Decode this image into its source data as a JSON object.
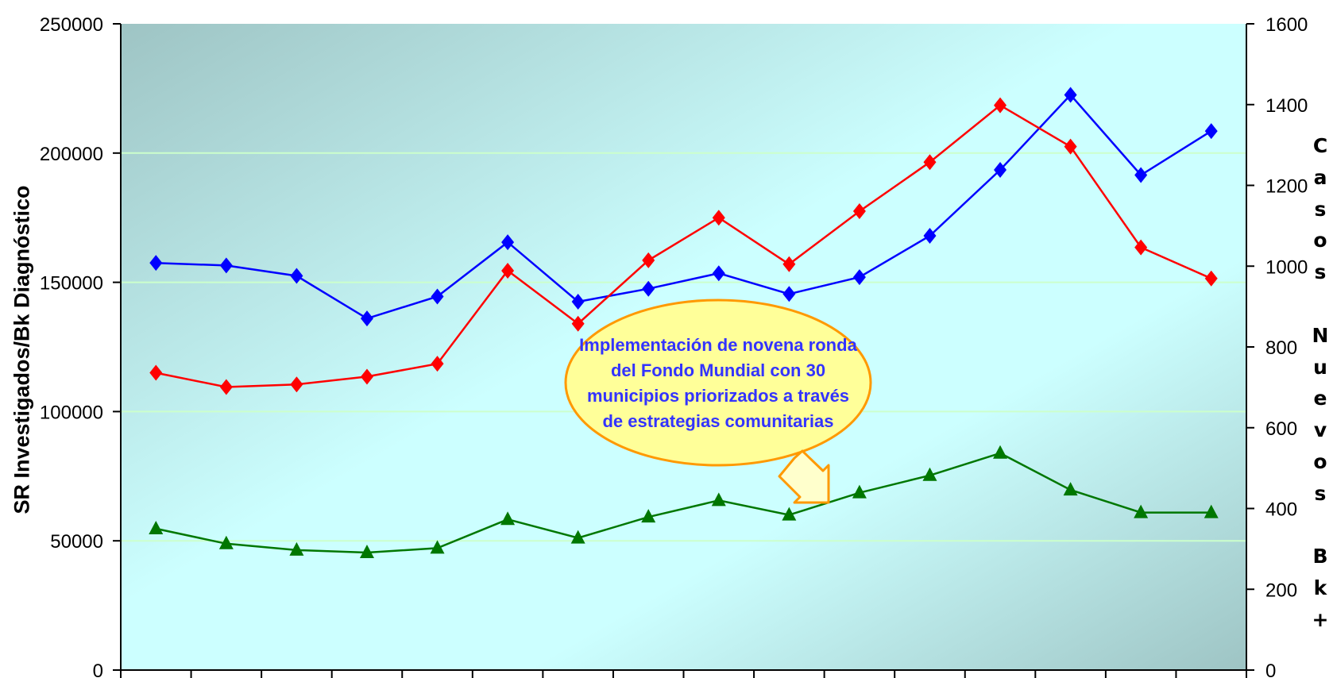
{
  "chart_data": {
    "type": "line",
    "title": "",
    "xlabel": "",
    "ylabel_left": "SR Investigados/Bk Diagnóstico",
    "ylabel_right": "Casos Nuevos Bk+",
    "ylim_left": [
      0,
      250000
    ],
    "ylim_right": [
      0,
      1600
    ],
    "yticks_left": [
      "0",
      "50000",
      "100000",
      "150000",
      "200000",
      "250000"
    ],
    "yticks_right": [
      "0",
      "200",
      "400",
      "600",
      "800",
      "1000",
      "1200",
      "1400",
      "1600"
    ],
    "grid": true,
    "legend": "none",
    "series": [
      {
        "color": "#0000ff",
        "marker": "diamond",
        "axis": "left",
        "values": [
          157500,
          156500,
          152500,
          136000,
          144500,
          165500,
          142500,
          147500,
          153500,
          145500,
          152000,
          168000,
          193500,
          222500,
          191500,
          208500
        ]
      },
      {
        "color": "#ff0000",
        "marker": "diamond",
        "axis": "left",
        "values": [
          115000,
          109500,
          110500,
          113500,
          118500,
          154500,
          134000,
          158500,
          175000,
          157000,
          177500,
          196500,
          218500,
          202500,
          163500,
          151500
        ]
      },
      {
        "color": "#007700",
        "marker": "triangle",
        "axis": "right",
        "values": [
          350,
          313,
          297,
          291,
          302,
          373,
          327,
          379,
          420,
          384,
          439,
          482,
          537,
          446,
          390,
          390
        ]
      }
    ],
    "annotation": "Implementación de novena ronda del Fondo Mundial con 30 municipios priorizados a través de estrategias comunitarias"
  },
  "colors": {
    "plot_gradient_dark": "#9ec4c4",
    "plot_gradient_light": "#ccffff",
    "gridline": "#ccffcc",
    "callout_fill": "#ffff99",
    "callout_stroke": "#ff9900"
  }
}
